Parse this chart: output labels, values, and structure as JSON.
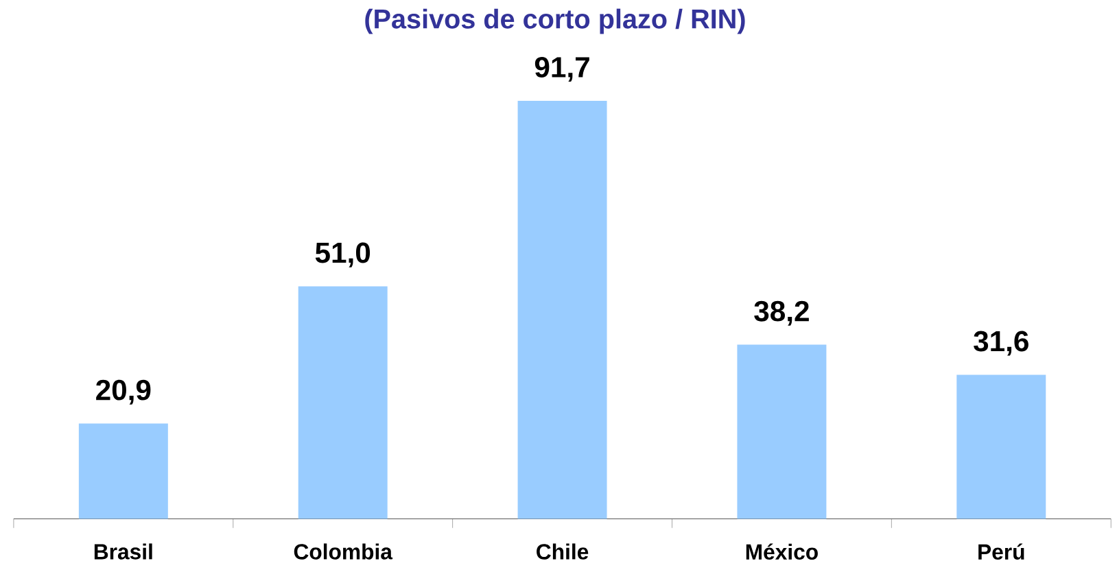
{
  "chart_data": {
    "type": "bar",
    "title": "(Pasivos de corto plazo / RIN)",
    "categories": [
      "Brasil",
      "Colombia",
      "Chile",
      "México",
      "Perú"
    ],
    "values": [
      20.9,
      51.0,
      91.7,
      38.2,
      31.6
    ],
    "value_labels": [
      "20,9",
      "51,0",
      "91,7",
      "38,2",
      "31,6"
    ],
    "color": "#99ccff"
  }
}
